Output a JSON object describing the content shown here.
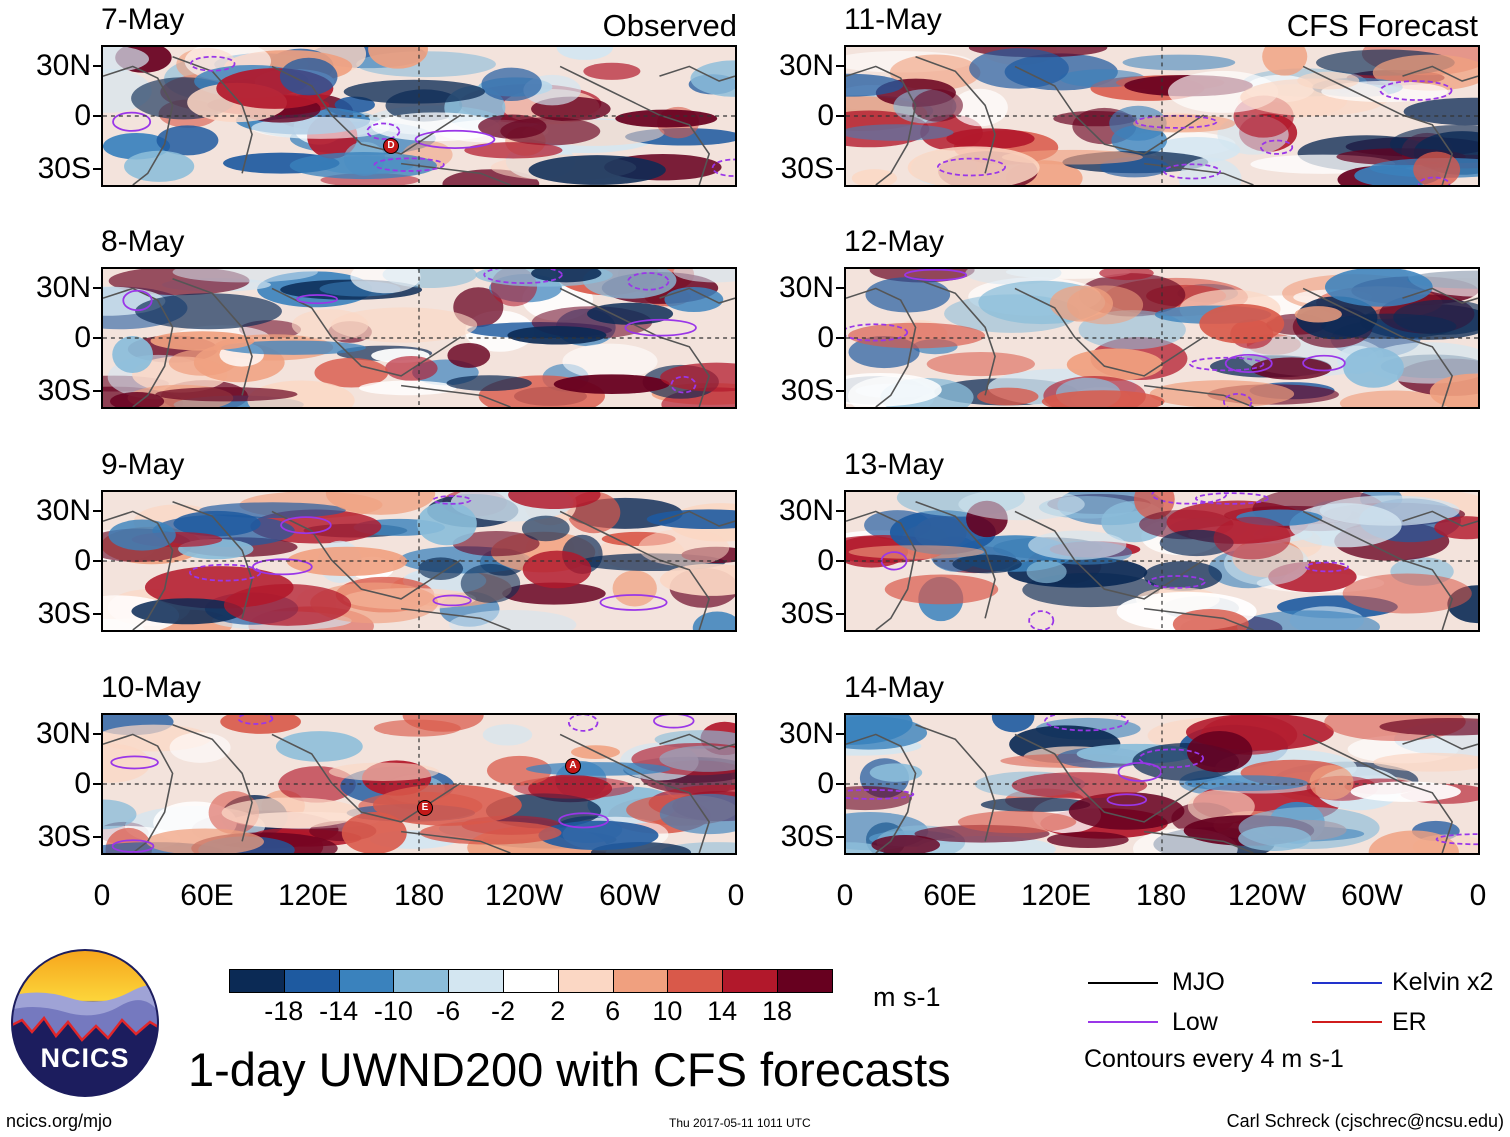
{
  "headers": {
    "observed": "Observed",
    "forecast": "CFS Forecast"
  },
  "panels": [
    {
      "date": "7-May",
      "type": "observed"
    },
    {
      "date": "8-May",
      "type": "observed"
    },
    {
      "date": "9-May",
      "type": "observed"
    },
    {
      "date": "10-May",
      "type": "observed"
    },
    {
      "date": "11-May",
      "type": "forecast"
    },
    {
      "date": "12-May",
      "type": "forecast"
    },
    {
      "date": "13-May",
      "type": "forecast"
    },
    {
      "date": "14-May",
      "type": "forecast"
    }
  ],
  "axes": {
    "lat_labels": [
      "30N",
      "0",
      "30S"
    ],
    "lon_labels": [
      "0",
      "60E",
      "120E",
      "180",
      "120W",
      "60W",
      "0"
    ]
  },
  "colorbar": {
    "colors": [
      "#0b2a55",
      "#1e5aa0",
      "#3a82bd",
      "#8bbdda",
      "#d3e6f1",
      "#ffffff",
      "#fbd7c4",
      "#f0a07f",
      "#d9594a",
      "#b2182b",
      "#67001f"
    ],
    "labels": [
      "-18",
      "-14",
      "-10",
      "-6",
      "-2",
      "2",
      "6",
      "10",
      "14",
      "18"
    ],
    "units": "m s-1"
  },
  "legend": {
    "items": [
      {
        "label": "MJO",
        "color": "#000000"
      },
      {
        "label": "Kelvin x2",
        "color": "#2233cc"
      },
      {
        "label": "Low",
        "color": "#9a36e8"
      },
      {
        "label": "ER",
        "color": "#d01c1c"
      }
    ],
    "note": "Contours every 4 m s-1"
  },
  "logo": {
    "text": "NCICS"
  },
  "title": "1-day UWND200 with CFS forecasts",
  "footer": {
    "url": "ncics.org/mjo",
    "timestamp": "Thu 2017-05-11 1011 UTC",
    "author": "Carl Schreck (cjschrec@ncsu.edu)"
  },
  "storm_markers": [
    "D",
    "A",
    "E"
  ]
}
